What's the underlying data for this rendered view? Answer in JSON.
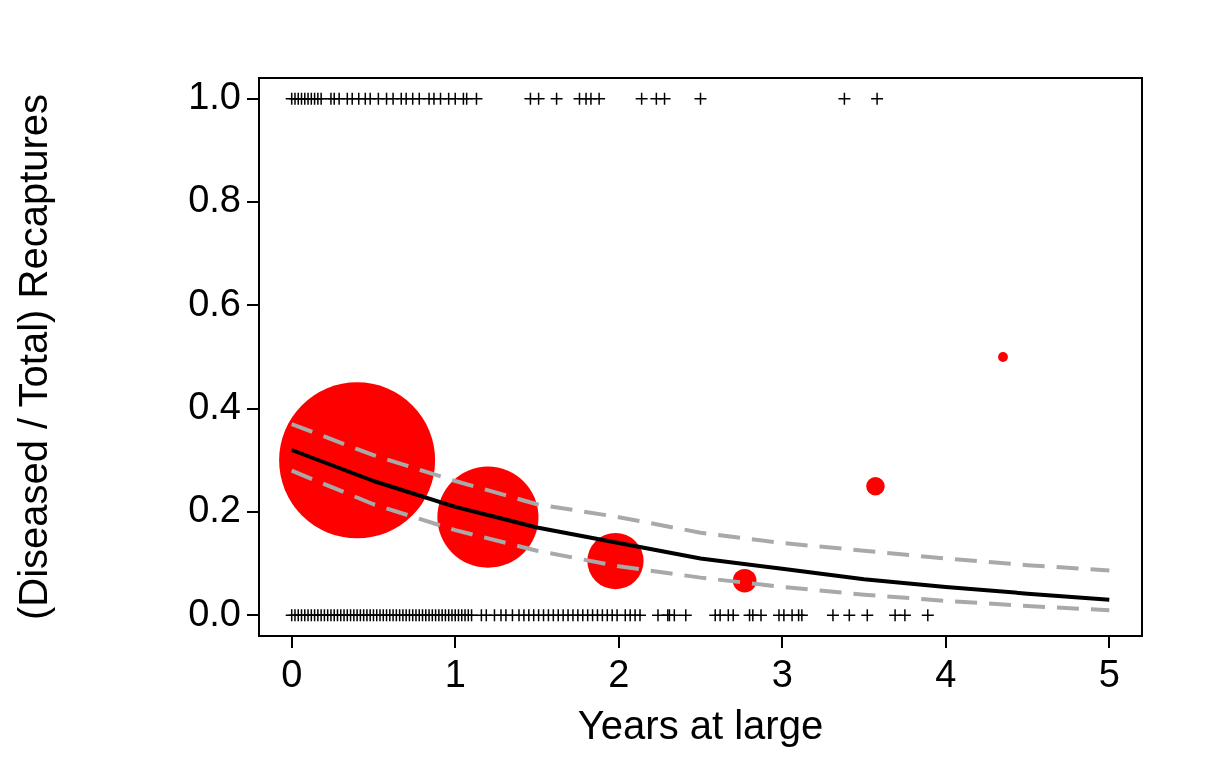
{
  "chart_data": {
    "type": "bubble",
    "xlabel": "Years at large",
    "ylabel": "(Diseased / Total) Recaptures",
    "xlim": [
      -0.2,
      5.2
    ],
    "xticks": [
      0,
      1,
      2,
      3,
      4,
      5
    ],
    "ylim": [
      -0.04,
      1.04
    ],
    "yticks": [
      {
        "value": 0,
        "label": "0.0"
      },
      0.2,
      0.4,
      0.6,
      0.8,
      {
        "value": 1,
        "label": "1.0"
      }
    ],
    "grid": false,
    "legend": false,
    "series": [
      {
        "color": "#ff0000",
        "x": [
          0.4,
          1.2,
          1.98,
          2.77,
          3.57,
          4.35
        ],
        "values": [
          0.3,
          0.19,
          0.105,
          0.067,
          0.25,
          0.5
        ],
        "sizes": [
          1,
          0.42,
          0.13,
          0.023,
          0.014,
          0.004
        ]
      },
      {
        "type": "line",
        "color": "#000000",
        "marker": "none",
        "line_style": "solid",
        "x": [
          0,
          0.5,
          1,
          1.5,
          2,
          2.5,
          3,
          3.5,
          4,
          4.5,
          5
        ],
        "values": [
          0.32,
          0.26,
          0.21,
          0.17,
          0.14,
          0.11,
          0.09,
          0.07,
          0.055,
          0.042,
          0.03
        ]
      },
      {
        "type": "line",
        "color": "#a9a9a9",
        "marker": "none",
        "line_style": "dashed",
        "x": [
          0,
          0.5,
          1,
          1.5,
          2,
          2.5,
          3,
          3.5,
          4,
          4.5,
          5
        ],
        "values": [
          0.37,
          0.31,
          0.26,
          0.215,
          0.19,
          0.16,
          0.14,
          0.125,
          0.11,
          0.097,
          0.087
        ]
      },
      {
        "type": "line",
        "color": "#a9a9a9",
        "marker": "none",
        "line_style": "dashed",
        "x": [
          0,
          0.5,
          1,
          1.5,
          2,
          2.5,
          3,
          3.5,
          4,
          4.5,
          5
        ],
        "values": [
          0.28,
          0.215,
          0.165,
          0.125,
          0.095,
          0.073,
          0.055,
          0.04,
          0.028,
          0.018,
          0.01
        ]
      },
      {
        "type": "scatter",
        "color": "#000000",
        "marker": "cross",
        "x": [
          0,
          0.02,
          0.04,
          0.06,
          0.08,
          0.1,
          0.12,
          0.14,
          0.16,
          0.18,
          0.24,
          0.26,
          0.29,
          0.34,
          0.37,
          0.41,
          0.45,
          0.48,
          0.53,
          0.58,
          0.62,
          0.67,
          0.7,
          0.74,
          0.78,
          0.84,
          0.87,
          0.91,
          0.96,
          1.0,
          1.05,
          1.07,
          1.13,
          1.46,
          1.51,
          1.62,
          1.76,
          1.8,
          1.83,
          1.88,
          2.14,
          2.23,
          2.28,
          2.5,
          3.38,
          3.58
        ],
        "values": [
          1,
          1,
          1,
          1,
          1,
          1,
          1,
          1,
          1,
          1,
          1,
          1,
          1,
          1,
          1,
          1,
          1,
          1,
          1,
          1,
          1,
          1,
          1,
          1,
          1,
          1,
          1,
          1,
          1,
          1,
          1,
          1,
          1,
          1,
          1,
          1,
          1,
          1,
          1,
          1,
          1,
          1,
          1,
          1,
          1,
          1
        ]
      },
      {
        "type": "scatter",
        "color": "#000000",
        "marker": "cross",
        "x": [
          0,
          0.02,
          0.04,
          0.06,
          0.08,
          0.1,
          0.12,
          0.14,
          0.16,
          0.18,
          0.2,
          0.22,
          0.24,
          0.26,
          0.28,
          0.3,
          0.32,
          0.34,
          0.36,
          0.38,
          0.4,
          0.42,
          0.44,
          0.46,
          0.48,
          0.5,
          0.52,
          0.54,
          0.56,
          0.58,
          0.6,
          0.62,
          0.64,
          0.66,
          0.68,
          0.7,
          0.72,
          0.74,
          0.76,
          0.78,
          0.8,
          0.82,
          0.84,
          0.86,
          0.88,
          0.9,
          0.92,
          0.94,
          0.96,
          0.98,
          1.0,
          1.02,
          1.04,
          1.06,
          1.08,
          1.1,
          1.16,
          1.19,
          1.24,
          1.28,
          1.31,
          1.35,
          1.39,
          1.42,
          1.45,
          1.48,
          1.51,
          1.54,
          1.57,
          1.6,
          1.63,
          1.66,
          1.69,
          1.72,
          1.75,
          1.78,
          1.81,
          1.84,
          1.87,
          1.9,
          1.93,
          1.96,
          1.99,
          2.04,
          2.07,
          2.1,
          2.13,
          2.24,
          2.3,
          2.31,
          2.34,
          2.41,
          2.59,
          2.62,
          2.67,
          2.7,
          2.8,
          2.82,
          2.87,
          2.98,
          3.01,
          3.06,
          3.1,
          3.12,
          3.31,
          3.41,
          3.52,
          3.69,
          3.75,
          3.89
        ],
        "values": [
          0,
          0,
          0,
          0,
          0,
          0,
          0,
          0,
          0,
          0,
          0,
          0,
          0,
          0,
          0,
          0,
          0,
          0,
          0,
          0,
          0,
          0,
          0,
          0,
          0,
          0,
          0,
          0,
          0,
          0,
          0,
          0,
          0,
          0,
          0,
          0,
          0,
          0,
          0,
          0,
          0,
          0,
          0,
          0,
          0,
          0,
          0,
          0,
          0,
          0,
          0,
          0,
          0,
          0,
          0,
          0,
          0,
          0,
          0,
          0,
          0,
          0,
          0,
          0,
          0,
          0,
          0,
          0,
          0,
          0,
          0,
          0,
          0,
          0,
          0,
          0,
          0,
          0,
          0,
          0,
          0,
          0,
          0,
          0,
          0,
          0,
          0,
          0,
          0,
          0,
          0,
          0,
          0,
          0,
          0,
          0,
          0,
          0,
          0,
          0,
          0,
          0,
          0,
          0,
          0,
          0,
          0,
          0,
          0,
          0
        ]
      }
    ]
  }
}
